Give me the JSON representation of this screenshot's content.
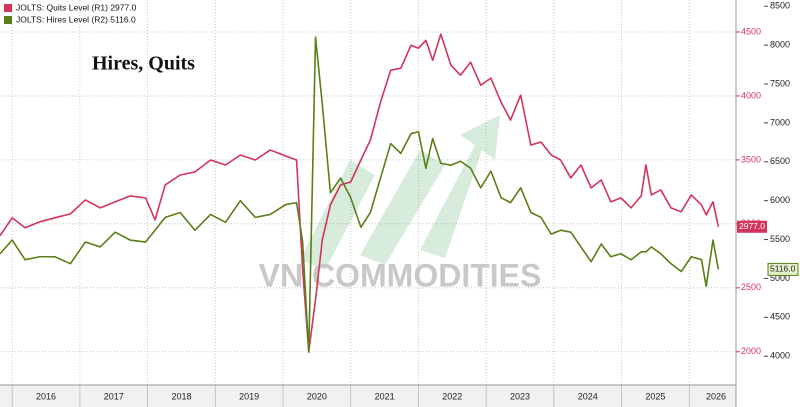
{
  "chart_data": {
    "type": "line",
    "title": "Hires, Quits",
    "watermark": "VN COMMODITIES",
    "x": [
      2015.82,
      2016.0,
      2016.19,
      2016.41,
      2016.63,
      2016.86,
      2017.08,
      2017.3,
      2017.52,
      2017.74,
      2017.97,
      2018.11,
      2018.26,
      2018.48,
      2018.7,
      2018.93,
      2019.15,
      2019.37,
      2019.59,
      2019.81,
      2020.04,
      2020.2,
      2020.29,
      2020.38,
      2020.48,
      2020.58,
      2020.7,
      2020.85,
      2021.0,
      2021.15,
      2021.29,
      2021.44,
      2021.59,
      2021.74,
      2021.89,
      2022.0,
      2022.11,
      2022.21,
      2022.33,
      2022.48,
      2022.62,
      2022.77,
      2022.92,
      2023.07,
      2023.22,
      2023.36,
      2023.51,
      2023.66,
      2023.81,
      2023.96,
      2024.1,
      2024.25,
      2024.4,
      2024.55,
      2024.7,
      2024.84,
      2024.99,
      2025.14,
      2025.29,
      2025.36,
      2025.44,
      2025.58,
      2025.73,
      2025.88,
      2026.03,
      2026.18,
      2026.25,
      2026.35,
      2026.43
    ],
    "xlim": [
      2015.82,
      2026.69
    ],
    "xticks": [
      2016,
      2017,
      2018,
      2019,
      2020,
      2021,
      2022,
      2023,
      2024,
      2025,
      2026
    ],
    "ylim": [
      1740,
      4750
    ],
    "yticks": [
      2000,
      2500,
      3000,
      3500,
      4000,
      4500
    ],
    "y2lim": [
      3630,
      8580
    ],
    "y2ticks": [
      4000,
      4500,
      5000,
      5500,
      6000,
      6500,
      7000,
      7500,
      8000,
      8500
    ],
    "grid": true,
    "legend": "top-left",
    "series": [
      {
        "name": "JOLTS: Quits Level (R1) 2977.0",
        "color": "#d3345c",
        "axis": "y",
        "values": [
          2906,
          3047,
          2969,
          3016,
          3047,
          3078,
          3187,
          3125,
          3172,
          3218,
          3203,
          3031,
          3304,
          3382,
          3406,
          3499,
          3460,
          3538,
          3499,
          3577,
          3530,
          3499,
          2641,
          2002,
          2407,
          2875,
          3148,
          3304,
          3328,
          3499,
          3655,
          3952,
          4201,
          4217,
          4396,
          4373,
          4435,
          4279,
          4482,
          4240,
          4162,
          4264,
          4084,
          4139,
          3952,
          3811,
          4006,
          3616,
          3640,
          3538,
          3499,
          3359,
          3460,
          3281,
          3343,
          3172,
          3203,
          3125,
          3218,
          3460,
          3226,
          3265,
          3125,
          3094,
          3226,
          3148,
          3070,
          3172,
          2977
        ],
        "value_labels": [
          null,
          null,
          null,
          null,
          null,
          null,
          null,
          null,
          null,
          null,
          null,
          null,
          null,
          null,
          null,
          null,
          null,
          null,
          null,
          null,
          null,
          null,
          null,
          null,
          null,
          null,
          null,
          null,
          null,
          null,
          null,
          null,
          null,
          null,
          null,
          null,
          null,
          null,
          null,
          null,
          null,
          null,
          null,
          null,
          null,
          null,
          null,
          null,
          null,
          null,
          null,
          null,
          null,
          null,
          null,
          null,
          null,
          null,
          null,
          null,
          null,
          null,
          null,
          null,
          null,
          null,
          null,
          null,
          "2977.0"
        ]
      },
      {
        "name": "JOLTS: Hires Level (R2) 5116.0",
        "color": "#5b7f17",
        "axis": "y2",
        "values": [
          5317,
          5494,
          5241,
          5279,
          5279,
          5190,
          5468,
          5405,
          5595,
          5494,
          5468,
          5620,
          5785,
          5848,
          5620,
          5823,
          5722,
          6000,
          5785,
          5823,
          5950,
          5975,
          5468,
          4051,
          8102,
          7241,
          6101,
          6291,
          6038,
          5658,
          5848,
          6291,
          6734,
          6608,
          6861,
          6886,
          6418,
          6798,
          6481,
          6456,
          6507,
          6418,
          6165,
          6380,
          6038,
          5975,
          6165,
          5848,
          5785,
          5570,
          5620,
          5595,
          5405,
          5215,
          5443,
          5279,
          5317,
          5241,
          5342,
          5342,
          5405,
          5317,
          5190,
          5089,
          5279,
          5241,
          4899,
          5494,
          5116
        ],
        "value_labels": [
          null,
          null,
          null,
          null,
          null,
          null,
          null,
          null,
          null,
          null,
          null,
          null,
          null,
          null,
          null,
          null,
          null,
          null,
          null,
          null,
          null,
          null,
          null,
          null,
          null,
          null,
          null,
          null,
          null,
          null,
          null,
          null,
          null,
          null,
          null,
          null,
          null,
          null,
          null,
          null,
          null,
          null,
          null,
          null,
          null,
          null,
          null,
          null,
          null,
          null,
          null,
          null,
          null,
          null,
          null,
          null,
          null,
          null,
          null,
          null,
          null,
          null,
          null,
          null,
          null,
          null,
          null,
          null,
          "5116.0"
        ]
      }
    ]
  }
}
